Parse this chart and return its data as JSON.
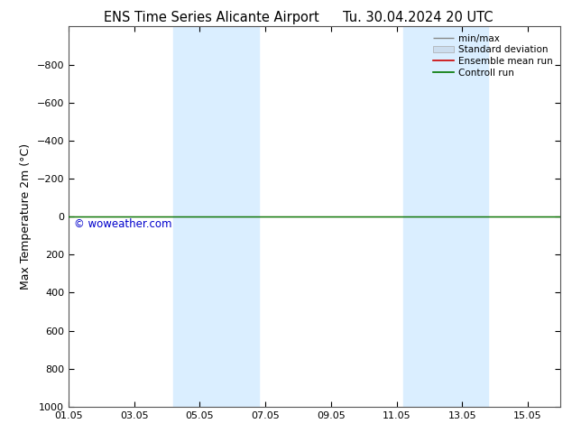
{
  "title": "ENS Time Series Alicante Airport",
  "title_right": "Tu. 30.04.2024 20 UTC",
  "ylabel": "Max Temperature 2m (°C)",
  "ylim_bottom": -1000,
  "ylim_top": 1000,
  "yticks": [
    -800,
    -600,
    -400,
    -200,
    0,
    200,
    400,
    600,
    800,
    1000
  ],
  "xtick_labels": [
    "01.05",
    "03.05",
    "05.05",
    "07.05",
    "09.05",
    "11.05",
    "13.05",
    "15.05"
  ],
  "xtick_positions": [
    0,
    2,
    4,
    6,
    8,
    10,
    12,
    14
  ],
  "x_min": 0,
  "x_max": 15,
  "shaded_bands": [
    {
      "x_start": 3.2,
      "x_end": 5.8
    },
    {
      "x_start": 10.2,
      "x_end": 12.8
    }
  ],
  "control_run_y": 0,
  "watermark": "© woweather.com",
  "watermark_color": "#0000cc",
  "bg_color": "#ffffff",
  "plot_bg_color": "#ffffff",
  "shaded_color": "#daeeff",
  "border_color": "#555555",
  "legend_entries": [
    "min/max",
    "Standard deviation",
    "Ensemble mean run",
    "Controll run"
  ],
  "control_run_color": "#007700",
  "ensemble_mean_color": "#cc0000",
  "minmax_color": "#888888",
  "stddev_color": "#cccccc"
}
